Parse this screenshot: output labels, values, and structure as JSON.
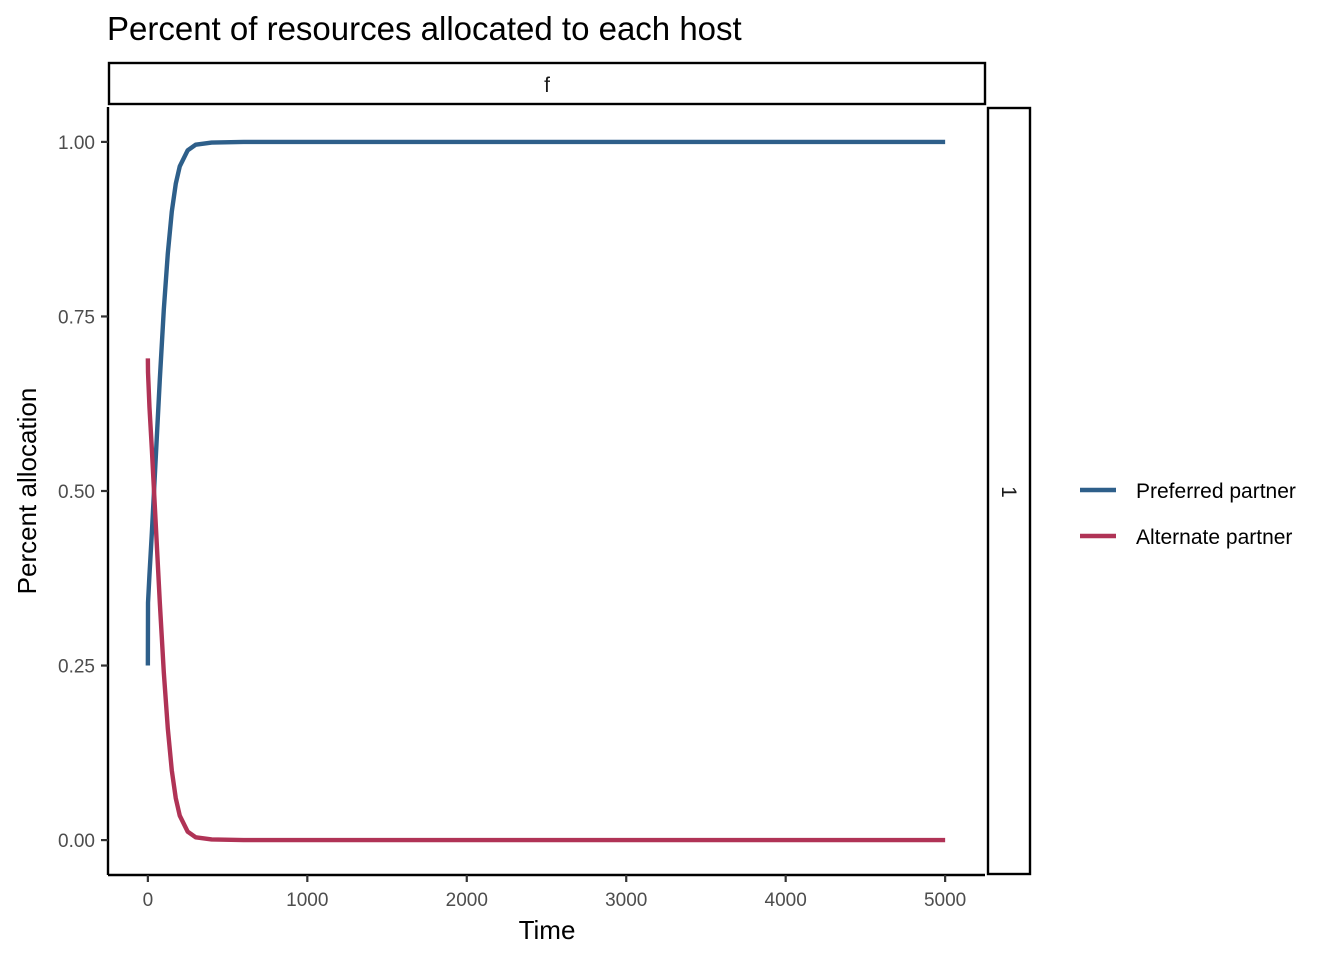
{
  "chart_data": {
    "type": "line",
    "title": "Percent of resources allocated to each host",
    "facet_col_label": "f",
    "facet_row_label": "1",
    "xlabel": "Time",
    "ylabel": "Percent allocation",
    "xlim": [
      -250,
      5250
    ],
    "ylim": [
      -0.05,
      1.05
    ],
    "x_ticks": [
      0,
      1000,
      2000,
      3000,
      4000,
      5000
    ],
    "x_tick_labels": [
      "0",
      "1000",
      "2000",
      "3000",
      "4000",
      "5000"
    ],
    "y_ticks": [
      0,
      0.25,
      0.5,
      0.75,
      1
    ],
    "y_tick_labels": [
      "0.00",
      "0.25",
      "0.50",
      "0.75",
      "1.00"
    ],
    "grid": false,
    "legend_position": "right",
    "series": [
      {
        "name": "Preferred partner",
        "color": "#2e5f8a",
        "x": [
          0,
          1,
          10,
          25,
          50,
          75,
          100,
          125,
          150,
          175,
          200,
          250,
          300,
          400,
          600,
          1000,
          2000,
          3000,
          4000,
          5000
        ],
        "y": [
          0.25,
          0.34,
          0.38,
          0.44,
          0.55,
          0.66,
          0.76,
          0.84,
          0.9,
          0.94,
          0.965,
          0.988,
          0.996,
          0.999,
          1.0,
          1.0,
          1.0,
          1.0,
          1.0,
          1.0
        ]
      },
      {
        "name": "Alternate partner",
        "color": "#b03356",
        "x": [
          0,
          1,
          10,
          25,
          50,
          75,
          100,
          125,
          150,
          175,
          200,
          250,
          300,
          400,
          600,
          1000,
          2000,
          3000,
          4000,
          5000
        ],
        "y": [
          0.69,
          0.67,
          0.62,
          0.56,
          0.45,
          0.34,
          0.24,
          0.16,
          0.1,
          0.06,
          0.035,
          0.012,
          0.004,
          0.001,
          0.0,
          0.0,
          0.0,
          0.0,
          0.0,
          0.0
        ]
      }
    ]
  }
}
